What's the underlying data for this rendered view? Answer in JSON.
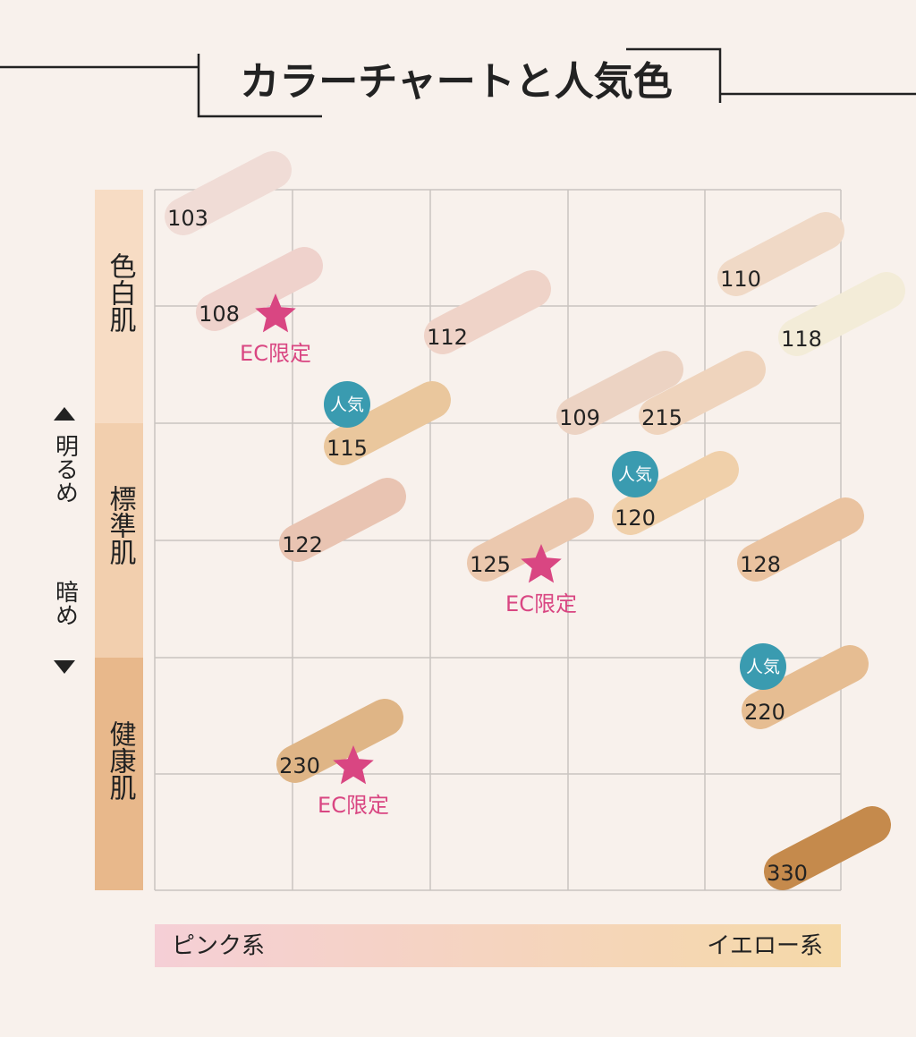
{
  "title": "カラーチャートと人気色",
  "rows": [
    "色白肌",
    "標準肌",
    "健康肌"
  ],
  "brightness_axis": {
    "top": "明るめ",
    "bottom": "暗め"
  },
  "tone_axis": {
    "left": "ピンク系",
    "right": "イエロー系"
  },
  "swatches": [
    {
      "label": "103",
      "color": "#f0dcd6"
    },
    {
      "label": "108",
      "color": "#efd2cc",
      "badge": "EC限定"
    },
    {
      "label": "112",
      "color": "#efd3c8"
    },
    {
      "label": "110",
      "color": "#f0d9c6"
    },
    {
      "label": "118",
      "color": "#f3ecd8"
    },
    {
      "label": "115",
      "color": "#eac79d",
      "badge": "人気"
    },
    {
      "label": "109",
      "color": "#ecd3c3"
    },
    {
      "label": "215",
      "color": "#efd4bd"
    },
    {
      "label": "120",
      "color": "#f0d0aa",
      "badge": "人気"
    },
    {
      "label": "122",
      "color": "#e9c4b2"
    },
    {
      "label": "125",
      "color": "#ebc8ae",
      "badge": "EC限定"
    },
    {
      "label": "128",
      "color": "#eac3a0"
    },
    {
      "label": "220",
      "color": "#e6bd92",
      "badge": "人気"
    },
    {
      "label": "230",
      "color": "#dfb586",
      "badge": "EC限定"
    },
    {
      "label": "330",
      "color": "#c58a4c"
    }
  ]
}
